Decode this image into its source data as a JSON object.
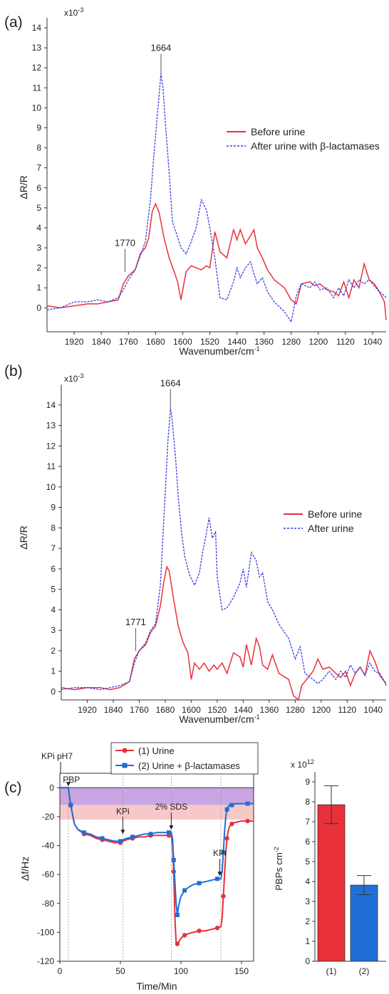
{
  "colors": {
    "red": "#e8313a",
    "blue": "#3b3fe0",
    "blue_solid": "#1f6fd6",
    "purple_band": "#c9a6e3",
    "pink_band": "#f7c8c8",
    "axis": "#333333"
  },
  "panel_a": {
    "label": "(a)",
    "exponent": "x10",
    "exponent_power": "-3",
    "ylabel": "ΔR/R",
    "xlabel": "Wavenumber/cm",
    "xlabel_power": "-1",
    "legend": [
      "Before urine",
      "After urine with β-lactamases"
    ],
    "peak_labels": [
      {
        "text": "1664",
        "x": 1664,
        "y": 11.7
      },
      {
        "text": "1770",
        "x": 1770,
        "y": 1.8
      }
    ],
    "chart_data": {
      "type": "line",
      "x_reversed": true,
      "xlim": [
        2000,
        1000
      ],
      "ylim": [
        -1.2,
        14.5
      ],
      "xticks": [
        1920,
        1840,
        1760,
        1680,
        1600,
        1520,
        1440,
        1360,
        1280,
        1200,
        1120,
        1040
      ],
      "yticks": [
        0,
        1,
        2,
        3,
        4,
        5,
        6,
        7,
        8,
        9,
        10,
        11,
        12,
        13,
        14
      ],
      "series": [
        {
          "name": "Before urine",
          "style": "solid",
          "x": [
            2000,
            1960,
            1920,
            1880,
            1850,
            1820,
            1790,
            1775,
            1760,
            1740,
            1725,
            1710,
            1700,
            1690,
            1680,
            1670,
            1655,
            1640,
            1625,
            1615,
            1605,
            1590,
            1575,
            1560,
            1545,
            1530,
            1520,
            1505,
            1490,
            1470,
            1450,
            1440,
            1430,
            1415,
            1400,
            1390,
            1380,
            1365,
            1350,
            1330,
            1300,
            1280,
            1265,
            1250,
            1225,
            1210,
            1195,
            1175,
            1155,
            1140,
            1125,
            1110,
            1095,
            1080,
            1065,
            1050,
            1035,
            1020,
            1005,
            1000
          ],
          "y": [
            0.1,
            0.0,
            0.1,
            0.2,
            0.2,
            0.3,
            0.4,
            1.2,
            1.6,
            1.9,
            2.7,
            3.0,
            3.5,
            4.8,
            5.2,
            4.8,
            3.5,
            2.5,
            1.8,
            1.3,
            0.4,
            1.8,
            2.1,
            2.0,
            1.9,
            2.1,
            2.0,
            3.8,
            2.8,
            2.5,
            3.9,
            3.4,
            3.9,
            3.2,
            3.6,
            3.9,
            3.0,
            2.5,
            1.9,
            1.4,
            1.0,
            0.4,
            0.2,
            1.2,
            1.3,
            1.1,
            1.2,
            0.9,
            0.8,
            0.6,
            1.3,
            0.5,
            1.4,
            1.0,
            2.2,
            1.4,
            1.2,
            0.8,
            0.3,
            -0.6
          ]
        },
        {
          "name": "After urine with β-lactamases",
          "style": "dashed",
          "x": [
            2000,
            1960,
            1920,
            1880,
            1850,
            1820,
            1790,
            1775,
            1760,
            1740,
            1725,
            1710,
            1695,
            1685,
            1675,
            1668,
            1664,
            1658,
            1650,
            1640,
            1630,
            1620,
            1605,
            1590,
            1575,
            1560,
            1545,
            1530,
            1520,
            1505,
            1490,
            1470,
            1450,
            1440,
            1430,
            1415,
            1400,
            1390,
            1380,
            1365,
            1350,
            1330,
            1300,
            1280,
            1265,
            1250,
            1225,
            1210,
            1195,
            1175,
            1155,
            1140,
            1125,
            1110,
            1095,
            1080,
            1065,
            1050,
            1035,
            1020,
            1005,
            1000
          ],
          "y": [
            -0.1,
            0.0,
            0.3,
            0.3,
            0.4,
            0.3,
            0.5,
            0.9,
            1.4,
            1.9,
            2.6,
            3.3,
            5.4,
            7.6,
            9.6,
            10.9,
            11.7,
            11.0,
            9.0,
            6.8,
            4.3,
            3.8,
            3.0,
            2.7,
            3.3,
            4.0,
            5.4,
            4.9,
            4.0,
            2.5,
            0.5,
            0.4,
            1.3,
            2.0,
            1.5,
            2.0,
            2.3,
            1.7,
            1.2,
            1.5,
            0.8,
            0.3,
            -0.2,
            -0.7,
            0.6,
            1.2,
            1.0,
            1.3,
            0.9,
            1.0,
            0.5,
            1.0,
            0.6,
            1.4,
            1.0,
            1.4,
            1.2,
            1.4,
            1.1,
            0.8,
            0.6,
            0.5
          ]
        }
      ]
    }
  },
  "panel_b": {
    "label": "(b)",
    "exponent": "x10",
    "exponent_power": "-3",
    "ylabel": "ΔR/R",
    "xlabel": "Wavenumber/cm",
    "xlabel_power": "-1",
    "legend": [
      "Before urine",
      "After urine"
    ],
    "peak_labels": [
      {
        "text": "1664",
        "x": 1664,
        "y": 13.8
      },
      {
        "text": "1771",
        "x": 1771,
        "y": 2.0
      }
    ],
    "chart_data": {
      "type": "line",
      "x_reversed": true,
      "xlim": [
        2000,
        1000
      ],
      "ylim": [
        -0.4,
        15.0
      ],
      "xticks": [
        1920,
        1840,
        1760,
        1680,
        1600,
        1520,
        1440,
        1360,
        1280,
        1200,
        1120,
        1040
      ],
      "yticks": [
        0,
        1,
        2,
        3,
        4,
        5,
        6,
        7,
        8,
        9,
        10,
        11,
        12,
        13,
        14
      ],
      "series": [
        {
          "name": "Before urine",
          "style": "solid",
          "x": [
            2000,
            1960,
            1920,
            1880,
            1850,
            1820,
            1790,
            1775,
            1760,
            1740,
            1725,
            1710,
            1695,
            1685,
            1675,
            1668,
            1655,
            1640,
            1625,
            1610,
            1600,
            1590,
            1575,
            1560,
            1545,
            1530,
            1520,
            1505,
            1490,
            1470,
            1450,
            1440,
            1430,
            1415,
            1400,
            1390,
            1380,
            1365,
            1350,
            1330,
            1310,
            1300,
            1285,
            1270,
            1260,
            1250,
            1225,
            1210,
            1195,
            1175,
            1155,
            1140,
            1125,
            1110,
            1095,
            1080,
            1065,
            1050,
            1035,
            1020,
            1005,
            1000
          ],
          "y": [
            0.2,
            0.1,
            0.2,
            0.2,
            0.1,
            0.2,
            0.5,
            1.6,
            2.0,
            2.3,
            2.9,
            3.2,
            4.2,
            5.3,
            6.1,
            5.9,
            4.6,
            3.2,
            2.4,
            1.9,
            0.6,
            1.4,
            1.1,
            1.4,
            1.0,
            1.3,
            1.1,
            1.4,
            0.9,
            1.9,
            1.7,
            1.2,
            2.3,
            1.3,
            2.6,
            2.2,
            1.3,
            1.1,
            1.8,
            0.9,
            0.7,
            0.6,
            -0.2,
            -0.4,
            0.3,
            0.5,
            1.0,
            1.6,
            1.1,
            1.2,
            0.9,
            0.7,
            1.0,
            0.3,
            0.9,
            1.2,
            0.8,
            2.0,
            1.5,
            0.8,
            0.5,
            0.3
          ]
        },
        {
          "name": "After urine",
          "style": "dashed",
          "x": [
            2000,
            1960,
            1920,
            1880,
            1850,
            1820,
            1790,
            1775,
            1760,
            1740,
            1725,
            1710,
            1695,
            1685,
            1678,
            1672,
            1668,
            1664,
            1660,
            1655,
            1648,
            1640,
            1630,
            1620,
            1605,
            1590,
            1575,
            1565,
            1555,
            1545,
            1535,
            1525,
            1520,
            1505,
            1490,
            1470,
            1450,
            1440,
            1430,
            1415,
            1400,
            1390,
            1380,
            1365,
            1350,
            1330,
            1300,
            1280,
            1265,
            1250,
            1225,
            1210,
            1195,
            1175,
            1155,
            1140,
            1125,
            1110,
            1095,
            1080,
            1065,
            1050,
            1035,
            1020,
            1005,
            1000
          ],
          "y": [
            0.1,
            0.2,
            0.2,
            0.1,
            0.2,
            0.3,
            0.5,
            1.4,
            2.0,
            2.4,
            3.0,
            3.3,
            5.2,
            8.2,
            10.3,
            12.2,
            13.0,
            13.8,
            13.5,
            12.6,
            11.4,
            9.5,
            7.8,
            6.6,
            5.7,
            5.2,
            5.8,
            6.8,
            7.6,
            8.5,
            7.5,
            7.8,
            5.6,
            4.0,
            4.1,
            4.6,
            5.3,
            6.0,
            5.1,
            6.8,
            6.4,
            5.6,
            5.8,
            4.4,
            4.0,
            3.3,
            2.6,
            1.6,
            2.2,
            0.9,
            0.6,
            0.4,
            0.6,
            1.0,
            0.6,
            1.0,
            0.7,
            1.3,
            0.9,
            1.2,
            0.8,
            1.4,
            1.0,
            0.9,
            0.5,
            0.4
          ]
        }
      ]
    }
  },
  "panel_c": {
    "label": "(c)",
    "ylabel": "Δf/Hz",
    "xlabel": "Time/Min",
    "legend": [
      "(1) Urine",
      "(2) Urine + β-lactamases"
    ],
    "annotations": [
      {
        "text": "KPi pH7",
        "x": 1,
        "y": 6
      },
      {
        "text": "PBP",
        "x": 6,
        "y": 0
      },
      {
        "text": "KPi",
        "x": 52,
        "y": -33
      },
      {
        "text": "2% SDS",
        "x": 92,
        "y": -30
      },
      {
        "text": "KPi",
        "x": 132,
        "y": -62
      }
    ],
    "vlines": [
      7,
      52,
      92,
      133
    ],
    "bands": [
      {
        "y0": -12,
        "y1": 0,
        "color": "purple"
      },
      {
        "y0": -22,
        "y1": -12,
        "color": "pink"
      }
    ],
    "chart_data": {
      "type": "line",
      "xlim": [
        0,
        160
      ],
      "ylim": [
        -120,
        10
      ],
      "xticks": [
        0,
        50,
        100,
        150
      ],
      "yticks": [
        0,
        -20,
        -40,
        -60,
        -80,
        -100,
        -120
      ],
      "series": [
        {
          "name": "(1) Urine",
          "marker": "circle",
          "x": [
            0,
            4,
            7,
            9,
            12,
            15,
            20,
            25,
            30,
            35,
            40,
            45,
            50,
            52,
            55,
            60,
            65,
            70,
            75,
            80,
            85,
            90,
            92,
            93,
            94,
            95,
            96,
            97,
            98,
            100,
            103,
            106,
            110,
            115,
            120,
            125,
            130,
            133,
            134,
            135,
            136,
            137,
            138,
            139,
            140,
            142,
            145,
            150,
            155,
            160
          ],
          "y": [
            0,
            0,
            0,
            -12,
            -25,
            -29,
            -32,
            -33,
            -35,
            -36,
            -37,
            -38,
            -38,
            -37,
            -36,
            -35,
            -34,
            -34,
            -33,
            -33,
            -33,
            -33,
            -33,
            -40,
            -58,
            -90,
            -107,
            -108,
            -107,
            -104,
            -102,
            -101,
            -100,
            -99,
            -99,
            -98,
            -97,
            -96,
            -90,
            -75,
            -60,
            -45,
            -35,
            -30,
            -27,
            -25,
            -24,
            -23,
            -23,
            -23
          ]
        },
        {
          "name": "(2) Urine + β-lactamases",
          "marker": "square",
          "x": [
            0,
            4,
            7,
            9,
            12,
            15,
            20,
            25,
            30,
            35,
            40,
            45,
            50,
            52,
            55,
            60,
            65,
            70,
            75,
            80,
            85,
            90,
            92,
            93,
            94,
            95,
            96,
            97,
            98,
            100,
            103,
            106,
            110,
            115,
            120,
            125,
            130,
            133,
            134,
            135,
            136,
            137,
            138,
            139,
            140,
            142,
            145,
            150,
            155,
            160
          ],
          "y": [
            0,
            0,
            0,
            -12,
            -25,
            -29,
            -31,
            -32,
            -34,
            -35,
            -36,
            -37,
            -37,
            -36,
            -35,
            -34,
            -33,
            -32,
            -32,
            -31,
            -31,
            -31,
            -31,
            -35,
            -50,
            -65,
            -80,
            -88,
            -82,
            -75,
            -71,
            -69,
            -67,
            -66,
            -65,
            -64,
            -63,
            -63,
            -58,
            -45,
            -30,
            -20,
            -15,
            -13,
            -12,
            -12,
            -11,
            -11,
            -11,
            -11
          ]
        }
      ]
    }
  },
  "panel_d": {
    "exponent": "x 10",
    "exponent_power": "12",
    "ylabel": "PBPs cm",
    "ylabel_power": "-2",
    "chart_data": {
      "type": "bar",
      "categories": [
        "(1)",
        "(2)"
      ],
      "values": [
        7.85,
        3.82
      ],
      "errors": [
        0.95,
        0.48
      ],
      "ylim": [
        0,
        9.5
      ],
      "yticks": [
        0,
        1,
        2,
        3,
        4,
        5,
        6,
        7,
        8,
        9
      ]
    }
  }
}
